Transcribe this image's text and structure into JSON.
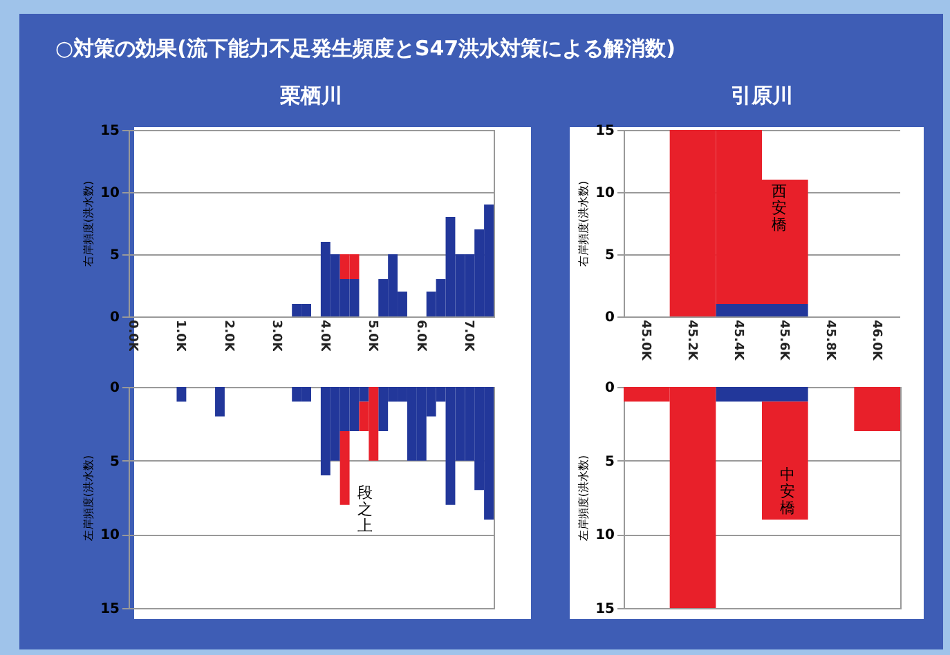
{
  "chart_data": [
    {
      "type": "bar",
      "title": "栗栖川",
      "ylabel": "右岸頻度(洪水数)",
      "annotations": [
        "○対策の効果(流下能力不足発生頻度とS47洪水対策による解消数)"
      ],
      "stacked": true,
      "categories": [
        "0.0K",
        null,
        null,
        null,
        null,
        "1.0K",
        null,
        null,
        null,
        null,
        "2.0K",
        null,
        null,
        null,
        null,
        "3.0K",
        null,
        null,
        null,
        null,
        "4.0K",
        null,
        null,
        null,
        null,
        "5.0K",
        null,
        null,
        null,
        null,
        "6.0K",
        null,
        null,
        null,
        null,
        "7.0K",
        null,
        null
      ],
      "series": [
        {
          "color": "#22379a",
          "values": [
            null,
            null,
            null,
            null,
            null,
            null,
            null,
            null,
            null,
            null,
            null,
            null,
            null,
            null,
            null,
            null,
            null,
            1,
            1,
            null,
            6,
            5,
            3,
            3,
            null,
            null,
            3,
            5,
            2,
            null,
            null,
            2,
            3,
            8,
            5,
            5,
            7,
            9
          ]
        },
        {
          "color": "#e8202a",
          "values": [
            null,
            null,
            null,
            null,
            null,
            null,
            null,
            null,
            null,
            null,
            null,
            null,
            null,
            null,
            null,
            null,
            null,
            null,
            null,
            null,
            null,
            null,
            2,
            2,
            null,
            null,
            null,
            null,
            null,
            null,
            null,
            null,
            null,
            null,
            null,
            null,
            null,
            null
          ]
        }
      ],
      "ylim": [
        0,
        15
      ],
      "yticks": [
        0,
        5,
        10,
        15
      ],
      "grid": "y"
    },
    {
      "type": "bar",
      "title": "引原川",
      "ylabel": "右岸頻度(洪水数)",
      "annotations": [
        "西安橋"
      ],
      "stacked": true,
      "categories": [
        "45.0K",
        "45.2K",
        "45.4K",
        "45.6K",
        "45.8K",
        "46.0K"
      ],
      "series": [
        {
          "color": "#22379a",
          "values": [
            null,
            null,
            1,
            1,
            null,
            null
          ]
        },
        {
          "color": "#e8202a",
          "values": [
            null,
            15,
            14,
            10,
            null,
            null
          ]
        }
      ],
      "ylim": [
        0,
        15
      ],
      "yticks": [
        0,
        5,
        10,
        15
      ],
      "grid": "y"
    },
    {
      "type": "bar",
      "ylabel": "左岸頻度(洪水数)",
      "annotations": [
        "段之上"
      ],
      "stacked": true,
      "categories": [
        null,
        null,
        null,
        null,
        null,
        null,
        null,
        null,
        null,
        null,
        null,
        null,
        null,
        null,
        null,
        null,
        null,
        null,
        null,
        null,
        null,
        null,
        null,
        null,
        null,
        null,
        null,
        null,
        null,
        null,
        null,
        null,
        null,
        null,
        null,
        null,
        null,
        null
      ],
      "series": [
        {
          "color": "#22379a",
          "values": [
            null,
            null,
            null,
            null,
            null,
            1,
            null,
            null,
            null,
            2,
            null,
            null,
            null,
            null,
            null,
            null,
            null,
            1,
            1,
            null,
            6,
            5,
            3,
            3,
            1,
            null,
            3,
            1,
            1,
            5,
            5,
            2,
            1,
            8,
            5,
            5,
            7,
            9
          ]
        },
        {
          "color": "#e8202a",
          "values": [
            null,
            null,
            null,
            null,
            null,
            null,
            null,
            null,
            null,
            null,
            null,
            null,
            null,
            null,
            null,
            null,
            null,
            null,
            null,
            null,
            null,
            null,
            5,
            null,
            2,
            5,
            null,
            null,
            null,
            null,
            null,
            null,
            null,
            null,
            null,
            null,
            null,
            null
          ]
        }
      ],
      "ylim": [
        15,
        0
      ],
      "yticks": [
        0,
        5,
        10,
        15
      ],
      "grid": "y"
    },
    {
      "type": "bar",
      "ylabel": "左岸頻度(洪水数)",
      "annotations": [
        "中安橋"
      ],
      "stacked": true,
      "categories": [
        null,
        null,
        null,
        null,
        null,
        null
      ],
      "series": [
        {
          "color": "#22379a",
          "values": [
            null,
            null,
            1,
            1,
            null,
            null
          ]
        },
        {
          "color": "#e8202a",
          "values": [
            1,
            15,
            null,
            8,
            null,
            3
          ]
        }
      ],
      "ylim": [
        15,
        0
      ],
      "yticks": [
        0,
        5,
        10,
        15
      ],
      "grid": "y"
    }
  ]
}
